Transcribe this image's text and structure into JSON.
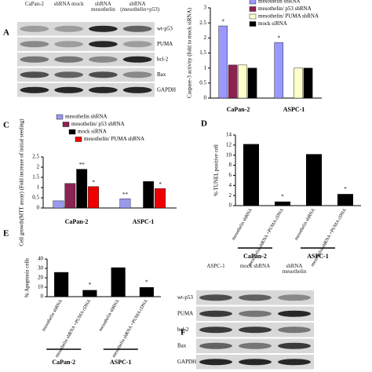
{
  "figure": {
    "panel_labels": [
      "A",
      "C",
      "D",
      "E",
      "F"
    ]
  },
  "blots": [
    {
      "lanes": [
        "CaPan-2",
        "shRNA mock",
        "shRNA mesothelin",
        "shRNA (mesothelin+p53)"
      ],
      "rows": [
        "wt-p53",
        "PUMA",
        "bcl-2",
        "Bax",
        "GAPDH"
      ]
    },
    {
      "lanes": [
        "ASPC-1",
        "mock shRNA",
        "shRNA mesothelin"
      ],
      "rows": [
        "wt-p53",
        "PUMA",
        "bcl-2",
        "Bax",
        "GAPDH"
      ]
    }
  ],
  "chart_data": [
    {
      "type": "grouped",
      "ylabel": "Caspase-3 activity (fold to mock siRNA)",
      "categories": [
        "CaPan-2",
        "ASPC-1"
      ],
      "series": [
        {
          "name": "mesothelin shRNA",
          "color": "#9999ff",
          "values": [
            2.4,
            1.85
          ],
          "significance": [
            "*",
            "*"
          ]
        },
        {
          "name": "mesothelin/ p53 shRNA",
          "color": "#8b2252",
          "values": [
            1.1,
            null
          ],
          "significance": [
            null,
            null
          ]
        },
        {
          "name": "mesothelin/ PUMA shRNA",
          "color": "#ffffcc",
          "values": [
            1.1,
            1.0
          ],
          "significance": [
            null,
            null
          ]
        },
        {
          "name": "mock siRNA",
          "color": "#000000",
          "values": [
            1.0,
            1.0
          ],
          "significance": [
            null,
            null
          ]
        }
      ],
      "ylim": [
        0,
        3
      ],
      "yticks": [
        0,
        0.5,
        1,
        1.5,
        2,
        2.5,
        3
      ]
    },
    {
      "type": "grouped",
      "ylabel": "Cell growth(MTT assay) (Fold increase of initial seeding)",
      "categories": [
        "CaPan-2",
        "ASPC-1"
      ],
      "series": [
        {
          "name": "mesothelin shRNA",
          "color": "#9999ee",
          "values": [
            0.35,
            0.45
          ],
          "significance": [
            null,
            "**"
          ]
        },
        {
          "name": "mesothelin/ p53 shRNA",
          "color": "#8b2252",
          "values": [
            1.2,
            null
          ],
          "significance": [
            null,
            null
          ]
        },
        {
          "name": "mock siRNA",
          "color": "#000000",
          "values": [
            1.9,
            1.3
          ],
          "significance": [
            "**",
            null
          ]
        },
        {
          "name": "mesothelin/ PUMA shRNA",
          "color": "#ee0000",
          "values": [
            1.05,
            0.95
          ],
          "significance": [
            "*",
            "*"
          ]
        }
      ],
      "ylim": [
        0,
        2.5
      ],
      "yticks": [
        0,
        0.5,
        1,
        1.5,
        2,
        2.5
      ]
    },
    {
      "type": "bar",
      "ylabel": "% TUNEL positive cell",
      "categories": [
        "mesothelin shRNA",
        "mesothelin shRNA +PUMA cDNA",
        "mesothelin shRNA",
        "mesothelin shRNA +PUMA cDNA"
      ],
      "values": [
        12.2,
        0.8,
        10.2,
        2.3
      ],
      "significance": [
        null,
        "*",
        null,
        "*"
      ],
      "color": "#000000",
      "group_labels": [
        "CaPan-2",
        "ASPC-1"
      ],
      "ylim": [
        0,
        14
      ],
      "yticks": [
        0,
        2,
        4,
        6,
        8,
        10,
        12,
        14
      ]
    },
    {
      "type": "bar",
      "ylabel": "% Apoptosis cells",
      "categories": [
        "mesothelin shRNA",
        "mesothelin shRNA +PUMA cDNA",
        "mesothelin shRNA",
        "mesothelin shRNA +PUMA cDNA"
      ],
      "values": [
        26,
        7,
        31,
        10
      ],
      "significance": [
        null,
        "*",
        null,
        "*"
      ],
      "color": "#000000",
      "group_labels": [
        "CaPan-2",
        "ASPC-1"
      ],
      "ylim": [
        0,
        40
      ],
      "yticks": [
        0,
        10,
        20,
        30,
        40
      ]
    }
  ]
}
